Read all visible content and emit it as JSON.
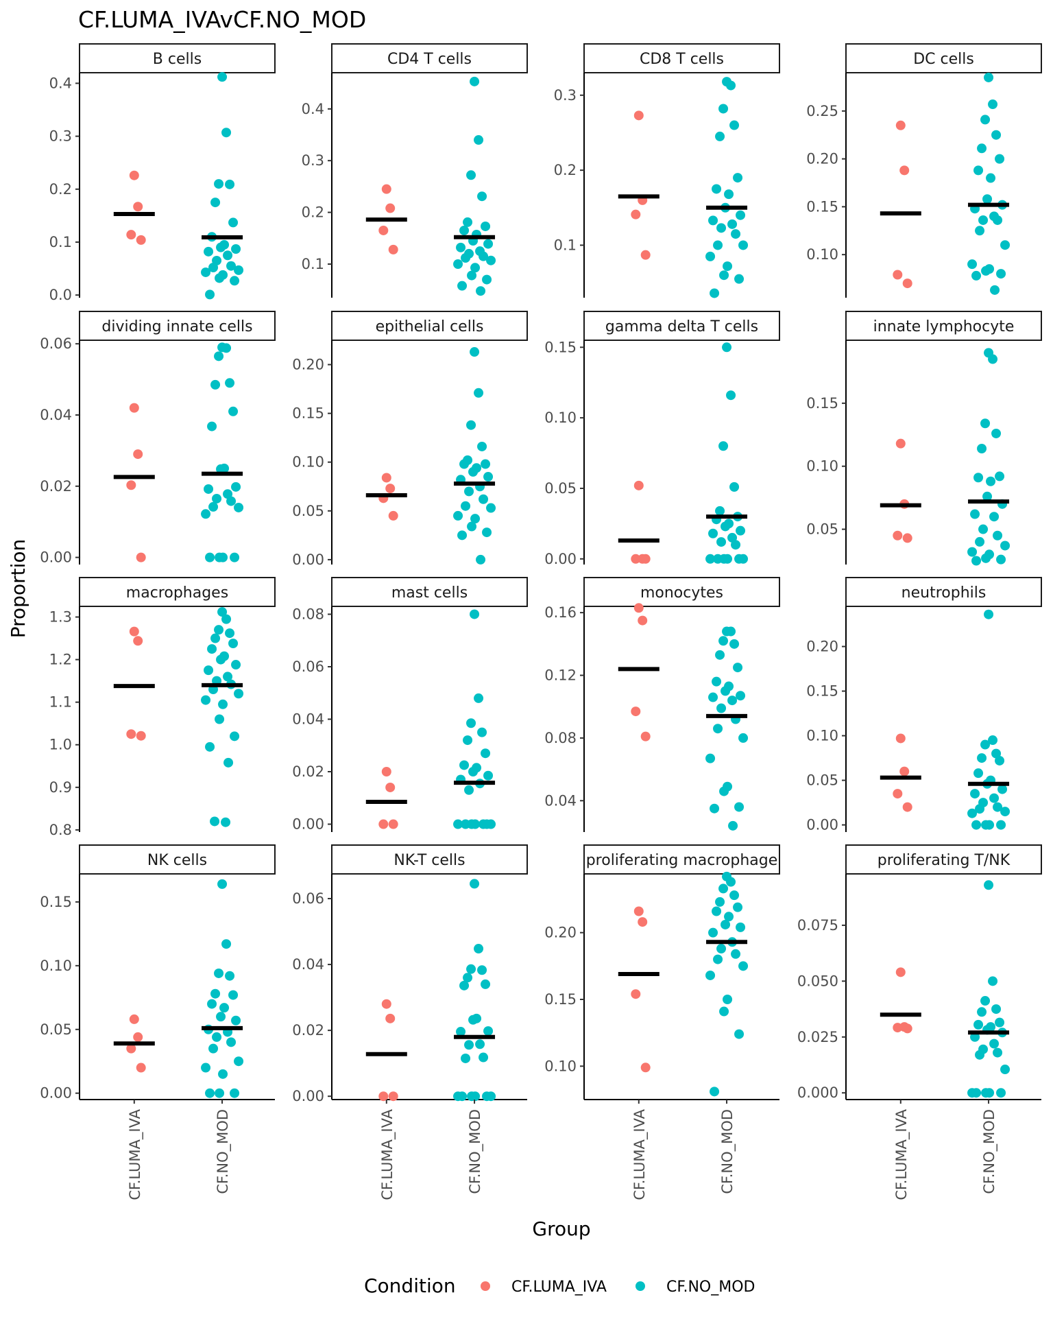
{
  "chart_data": {
    "type": "scatter",
    "title": "CF.LUMA_IVAvCF.NO_MOD",
    "xlabel": "Group",
    "ylabel": "Proportion",
    "groups": [
      "CF.LUMA_IVA",
      "CF.NO_MOD"
    ],
    "legend": {
      "title": "Condition",
      "position": "bottom",
      "entries": [
        {
          "name": "CF.LUMA_IVA",
          "color": "#F8766D"
        },
        {
          "name": "CF.NO_MOD",
          "color": "#00BFC4"
        }
      ]
    },
    "median_color": "#000000",
    "grid": false,
    "panels": [
      {
        "title": "B cells",
        "ylim": [
          -0.005,
          0.42
        ],
        "ticks": [
          0,
          0.1,
          0.2,
          0.3,
          0.4
        ],
        "tick_labels": [
          "0.0",
          "0.1",
          "0.2",
          "0.3",
          "0.4"
        ],
        "medians": [
          0.153,
          0.109
        ],
        "series": [
          {
            "name": "CF.LUMA_IVA",
            "values": [
              0.226,
              0.167,
              0.114,
              0.104
            ]
          },
          {
            "name": "CF.NO_MOD",
            "values": [
              0.412,
              0.307,
              0.21,
              0.209,
              0.175,
              0.137,
              0.11,
              0.095,
              0.09,
              0.087,
              0.082,
              0.075,
              0.065,
              0.055,
              0.052,
              0.047,
              0.043,
              0.038,
              0.032,
              0.027,
              0.001
            ]
          }
        ]
      },
      {
        "title": "CD4 T cells",
        "ylim": [
          0.035,
          0.47
        ],
        "ticks": [
          0.1,
          0.2,
          0.3,
          0.4
        ],
        "tick_labels": [
          "0.1",
          "0.2",
          "0.3",
          "0.4"
        ],
        "medians": [
          0.186,
          0.152
        ],
        "series": [
          {
            "name": "CF.LUMA_IVA",
            "values": [
              0.245,
              0.208,
              0.165,
              0.128
            ]
          },
          {
            "name": "CF.NO_MOD",
            "values": [
              0.453,
              0.34,
              0.272,
              0.231,
              0.181,
              0.173,
              0.165,
              0.157,
              0.145,
              0.139,
              0.132,
              0.125,
              0.12,
              0.115,
              0.112,
              0.107,
              0.1,
              0.093,
              0.078,
              0.07,
              0.058,
              0.048
            ]
          }
        ]
      },
      {
        "title": "CD8 T cells",
        "ylim": [
          0.03,
          0.33
        ],
        "ticks": [
          0.1,
          0.2,
          0.3
        ],
        "tick_labels": [
          "0.1",
          "0.2",
          "0.3"
        ],
        "medians": [
          0.165,
          0.15
        ],
        "series": [
          {
            "name": "CF.LUMA_IVA",
            "values": [
              0.273,
              0.16,
              0.141,
              0.087
            ]
          },
          {
            "name": "CF.NO_MOD",
            "values": [
              0.318,
              0.313,
              0.282,
              0.26,
              0.245,
              0.19,
              0.175,
              0.168,
              0.15,
              0.14,
              0.133,
              0.128,
              0.123,
              0.115,
              0.1,
              0.1,
              0.085,
              0.072,
              0.06,
              0.055,
              0.036
            ]
          }
        ]
      },
      {
        "title": "DC cells",
        "ylim": [
          0.055,
          0.29
        ],
        "ticks": [
          0.1,
          0.15,
          0.2,
          0.25
        ],
        "tick_labels": [
          "0.10",
          "0.15",
          "0.20",
          "0.25"
        ],
        "medians": [
          0.143,
          0.152
        ],
        "series": [
          {
            "name": "CF.LUMA_IVA",
            "values": [
              0.235,
              0.188,
              0.079,
              0.07
            ]
          },
          {
            "name": "CF.NO_MOD",
            "values": [
              0.285,
              0.257,
              0.241,
              0.225,
              0.211,
              0.2,
              0.188,
              0.18,
              0.158,
              0.152,
              0.148,
              0.14,
              0.136,
              0.136,
              0.125,
              0.11,
              0.09,
              0.085,
              0.083,
              0.08,
              0.078,
              0.063
            ]
          }
        ]
      },
      {
        "title": "dividing innate cells",
        "ylim": [
          -0.002,
          0.061
        ],
        "ticks": [
          0,
          0.02,
          0.04,
          0.06
        ],
        "tick_labels": [
          "0.00",
          "0.02",
          "0.04",
          "0.06"
        ],
        "medians": [
          0.0226,
          0.0235
        ],
        "series": [
          {
            "name": "CF.LUMA_IVA",
            "values": [
              0.042,
              0.029,
              0.0203,
              0.0
            ]
          },
          {
            "name": "CF.NO_MOD",
            "values": [
              0.059,
              0.0588,
              0.0565,
              0.049,
              0.0485,
              0.041,
              0.0368,
              0.025,
              0.0248,
              0.0198,
              0.0192,
              0.0178,
              0.0165,
              0.0158,
              0.0142,
              0.014,
              0.0122,
              0.0,
              0.0,
              0.0,
              0.0
            ]
          }
        ]
      },
      {
        "title": "epithelial cells",
        "ylim": [
          -0.005,
          0.225
        ],
        "ticks": [
          0,
          0.05,
          0.1,
          0.15,
          0.2
        ],
        "tick_labels": [
          "0.00",
          "0.05",
          "0.10",
          "0.15",
          "0.20"
        ],
        "medians": [
          0.066,
          0.078
        ],
        "series": [
          {
            "name": "CF.LUMA_IVA",
            "values": [
              0.084,
              0.073,
              0.063,
              0.045
            ]
          },
          {
            "name": "CF.NO_MOD",
            "values": [
              0.213,
              0.171,
              0.138,
              0.116,
              0.102,
              0.098,
              0.098,
              0.094,
              0.09,
              0.085,
              0.082,
              0.075,
              0.07,
              0.062,
              0.055,
              0.053,
              0.045,
              0.042,
              0.034,
              0.028,
              0.025,
              0.0
            ]
          }
        ]
      },
      {
        "title": "gamma delta T cells",
        "ylim": [
          -0.004,
          0.155
        ],
        "ticks": [
          0,
          0.05,
          0.1,
          0.15
        ],
        "tick_labels": [
          "0.00",
          "0.05",
          "0.10",
          "0.15"
        ],
        "medians": [
          0.013,
          0.03
        ],
        "series": [
          {
            "name": "CF.LUMA_IVA",
            "values": [
              0.052,
              0.0,
              0.0,
              0.0
            ]
          },
          {
            "name": "CF.NO_MOD",
            "values": [
              0.15,
              0.116,
              0.08,
              0.051,
              0.034,
              0.03,
              0.028,
              0.025,
              0.023,
              0.02,
              0.018,
              0.015,
              0.012,
              0.01,
              0.0,
              0.0,
              0.0,
              0.0,
              0.0,
              0.0
            ]
          }
        ]
      },
      {
        "title": "innate lymphocyte",
        "ylim": [
          0.022,
          0.2
        ],
        "ticks": [
          0.05,
          0.1,
          0.15
        ],
        "tick_labels": [
          "0.05",
          "0.10",
          "0.15"
        ],
        "medians": [
          0.069,
          0.072
        ],
        "series": [
          {
            "name": "CF.LUMA_IVA",
            "values": [
              0.118,
              0.07,
              0.045,
              0.043
            ]
          },
          {
            "name": "CF.NO_MOD",
            "values": [
              0.19,
              0.185,
              0.134,
              0.126,
              0.114,
              0.092,
              0.091,
              0.088,
              0.076,
              0.07,
              0.062,
              0.06,
              0.05,
              0.045,
              0.04,
              0.037,
              0.032,
              0.03,
              0.027,
              0.026,
              0.025
            ]
          }
        ]
      },
      {
        "title": "macrophages",
        "ylim": [
          0.795,
          1.325
        ],
        "ticks": [
          0.8,
          0.9,
          1.0,
          1.1,
          1.2,
          1.3
        ],
        "tick_labels": [
          "0.8",
          "0.9",
          "1.0",
          "1.1",
          "1.2",
          "1.3"
        ],
        "medians": [
          1.138,
          1.14
        ],
        "series": [
          {
            "name": "CF.LUMA_IVA",
            "values": [
              1.266,
              1.244,
              1.025,
              1.021
            ]
          },
          {
            "name": "CF.NO_MOD",
            "values": [
              1.312,
              1.295,
              1.27,
              1.262,
              1.25,
              1.238,
              1.225,
              1.208,
              1.2,
              1.188,
              1.175,
              1.16,
              1.15,
              1.142,
              1.13,
              1.12,
              1.105,
              1.095,
              1.06,
              1.02,
              0.995,
              0.958,
              0.82,
              0.818
            ]
          }
        ]
      },
      {
        "title": "mast cells",
        "ylim": [
          -0.003,
          0.083
        ],
        "ticks": [
          0,
          0.02,
          0.04,
          0.06,
          0.08
        ],
        "tick_labels": [
          "0.00",
          "0.02",
          "0.04",
          "0.06",
          "0.08"
        ],
        "medians": [
          0.0085,
          0.0158
        ],
        "series": [
          {
            "name": "CF.LUMA_IVA",
            "values": [
              0.02,
              0.014,
              0.0,
              0.0
            ]
          },
          {
            "name": "CF.NO_MOD",
            "values": [
              0.08,
              0.048,
              0.0385,
              0.035,
              0.032,
              0.027,
              0.0225,
              0.0215,
              0.02,
              0.0185,
              0.017,
              0.0155,
              0.013,
              0.0,
              0.0,
              0.0,
              0.0,
              0.0,
              0.0,
              0.0
            ]
          }
        ]
      },
      {
        "title": "monocytes",
        "ylim": [
          0.02,
          0.164
        ],
        "ticks": [
          0.04,
          0.08,
          0.12,
          0.16
        ],
        "tick_labels": [
          "0.04",
          "0.08",
          "0.12",
          "0.16"
        ],
        "medians": [
          0.124,
          0.094
        ],
        "series": [
          {
            "name": "CF.LUMA_IVA",
            "values": [
              0.163,
              0.155,
              0.097,
              0.081
            ]
          },
          {
            "name": "CF.NO_MOD",
            "values": [
              0.148,
              0.148,
              0.142,
              0.14,
              0.133,
              0.125,
              0.116,
              0.113,
              0.11,
              0.107,
              0.106,
              0.104,
              0.099,
              0.092,
              0.086,
              0.08,
              0.067,
              0.049,
              0.046,
              0.036,
              0.035,
              0.024
            ]
          }
        ]
      },
      {
        "title": "neutrophils",
        "ylim": [
          -0.008,
          0.245
        ],
        "ticks": [
          0,
          0.05,
          0.1,
          0.15,
          0.2
        ],
        "tick_labels": [
          "0.00",
          "0.05",
          "0.10",
          "0.15",
          "0.20"
        ],
        "medians": [
          0.053,
          0.046
        ],
        "series": [
          {
            "name": "CF.LUMA_IVA",
            "values": [
              0.097,
              0.06,
              0.035,
              0.02
            ]
          },
          {
            "name": "CF.NO_MOD",
            "values": [
              0.236,
              0.095,
              0.09,
              0.08,
              0.075,
              0.072,
              0.058,
              0.05,
              0.046,
              0.04,
              0.035,
              0.03,
              0.025,
              0.02,
              0.018,
              0.015,
              0.013,
              0.0,
              0.0,
              0.0,
              0.0
            ]
          }
        ]
      },
      {
        "title": "NK cells",
        "ylim": [
          -0.005,
          0.172
        ],
        "ticks": [
          0,
          0.05,
          0.1,
          0.15
        ],
        "tick_labels": [
          "0.00",
          "0.05",
          "0.10",
          "0.15"
        ],
        "medians": [
          0.039,
          0.051
        ],
        "series": [
          {
            "name": "CF.LUMA_IVA",
            "values": [
              0.058,
              0.044,
              0.035,
              0.02
            ]
          },
          {
            "name": "CF.NO_MOD",
            "values": [
              0.164,
              0.117,
              0.094,
              0.092,
              0.078,
              0.077,
              0.07,
              0.067,
              0.06,
              0.057,
              0.05,
              0.048,
              0.044,
              0.04,
              0.035,
              0.025,
              0.02,
              0.015,
              0.0,
              0.0,
              0.0
            ]
          }
        ]
      },
      {
        "title": "NK-T cells",
        "ylim": [
          -0.001,
          0.0675
        ],
        "ticks": [
          0,
          0.02,
          0.04,
          0.06
        ],
        "tick_labels": [
          "0.00",
          "0.02",
          "0.04",
          "0.06"
        ],
        "medians": [
          0.0128,
          0.018
        ],
        "series": [
          {
            "name": "CF.LUMA_IVA",
            "values": [
              0.028,
              0.0236,
              0.0,
              0.0
            ]
          },
          {
            "name": "CF.NO_MOD",
            "values": [
              0.0645,
              0.0448,
              0.0386,
              0.0383,
              0.036,
              0.034,
              0.0336,
              0.0236,
              0.0232,
              0.0198,
              0.0196,
              0.0158,
              0.0156,
              0.0118,
              0.0115,
              0.0,
              0.0,
              0.0,
              0.0,
              0.0,
              0.0
            ]
          }
        ]
      },
      {
        "title": "proliferating macrophage",
        "ylim": [
          0.075,
          0.244
        ],
        "ticks": [
          0.1,
          0.15,
          0.2
        ],
        "tick_labels": [
          "0.10",
          "0.15",
          "0.20"
        ],
        "medians": [
          0.169,
          0.193
        ],
        "series": [
          {
            "name": "CF.LUMA_IVA",
            "values": [
              0.216,
              0.208,
              0.154,
              0.099
            ]
          },
          {
            "name": "CF.NO_MOD",
            "values": [
              0.242,
              0.238,
              0.233,
              0.228,
              0.223,
              0.219,
              0.216,
              0.212,
              0.206,
              0.204,
              0.2,
              0.193,
              0.188,
              0.184,
              0.18,
              0.175,
              0.168,
              0.15,
              0.141,
              0.124,
              0.081
            ]
          }
        ]
      },
      {
        "title": "proliferating T/NK",
        "ylim": [
          -0.003,
          0.098
        ],
        "ticks": [
          0,
          0.025,
          0.05,
          0.075
        ],
        "tick_labels": [
          "0.000",
          "0.025",
          "0.050",
          "0.075"
        ],
        "medians": [
          0.035,
          0.027
        ],
        "series": [
          {
            "name": "CF.LUMA_IVA",
            "values": [
              0.054,
              0.0295,
              0.0292,
              0.0288
            ]
          },
          {
            "name": "CF.NO_MOD",
            "values": [
              0.093,
              0.05,
              0.0412,
              0.0375,
              0.0362,
              0.0315,
              0.0305,
              0.0295,
              0.0282,
              0.027,
              0.025,
              0.022,
              0.0195,
              0.018,
              0.017,
              0.0105,
              0.0,
              0.0,
              0.0,
              0.0,
              0.0
            ]
          }
        ]
      }
    ]
  }
}
